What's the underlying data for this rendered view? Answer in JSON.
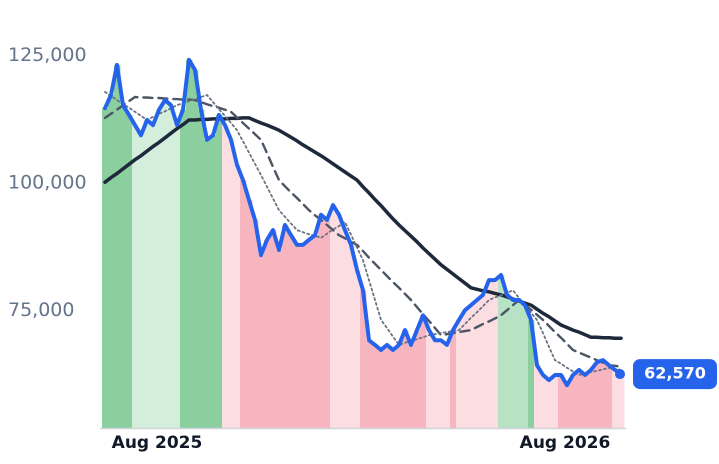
{
  "chart_data": {
    "type": "line",
    "categories": [
      null,
      null,
      null,
      null,
      null,
      null,
      null,
      null,
      null,
      "Aug 2025",
      null,
      null,
      null,
      null,
      null,
      null,
      null,
      null,
      null,
      null,
      null,
      null,
      null,
      null,
      null,
      null,
      null,
      null,
      null,
      null,
      null,
      null,
      null,
      null,
      null,
      null,
      null,
      null,
      null,
      null,
      null,
      null,
      null,
      null,
      null,
      null,
      null,
      null,
      null,
      null,
      null,
      null,
      null,
      null,
      null,
      null,
      null,
      null,
      null,
      null,
      null,
      null,
      null,
      null,
      null,
      null,
      null,
      null,
      null,
      null,
      null,
      null,
      null,
      null,
      null,
      null,
      null,
      "Aug 2026",
      null,
      null,
      null,
      null,
      null,
      null,
      null,
      null,
      null
    ],
    "ylim": [
      52000,
      132000
    ],
    "yticks": [
      {
        "value": 75000,
        "label": "75,000"
      },
      {
        "value": 100000,
        "label": "100,000"
      },
      {
        "value": 125000,
        "label": "125,000"
      }
    ],
    "grid": false,
    "area_colors": [
      "#8ccf9f",
      "#8ccf9f",
      "#8ccf9f",
      "#8ccf9f",
      "#8ccf9f",
      "#d3eedb",
      "#d3eedb",
      "#d3eedb",
      "#d3eedb",
      "#d3eedb",
      "#d3eedb",
      "#d3eedb",
      "#d3eedb",
      "#8ccf9f",
      "#8ccf9f",
      "#8ccf9f",
      "#8ccf9f",
      "#8ccf9f",
      "#8ccf9f",
      "#8ccf9f",
      "#fcdde2",
      "#fcdde2",
      "#fcdde2",
      "#f7b5bf",
      "#f7b5bf",
      "#f7b5bf",
      "#f7b5bf",
      "#f7b5bf",
      "#f7b5bf",
      "#f7b5bf",
      "#f7b5bf",
      "#f7b5bf",
      "#f7b5bf",
      "#f7b5bf",
      "#f7b5bf",
      "#f7b5bf",
      "#f7b5bf",
      "#f7b5bf",
      "#fcdde2",
      "#fcdde2",
      "#fcdde2",
      "#fcdde2",
      "#fcdde2",
      "#f7b5bf",
      "#f7b5bf",
      "#f7b5bf",
      "#f7b5bf",
      "#f7b5bf",
      "#f7b5bf",
      "#f7b5bf",
      "#f7b5bf",
      "#f7b5bf",
      "#f7b5bf",
      "#f7b5bf",
      "#fcdde2",
      "#fcdde2",
      "#fcdde2",
      "#fcdde2",
      "#f7b5bf",
      "#fcdde2",
      "#fcdde2",
      "#fcdde2",
      "#fcdde2",
      "#fcdde2",
      "#fcdde2",
      "#fcdde2",
      "#b8e2c4",
      "#b8e2c4",
      "#b8e2c4",
      "#b8e2c4",
      "#b8e2c4",
      "#8ccf9f",
      "#fcdde2",
      "#fcdde2",
      "#fcdde2",
      "#fcdde2",
      "#f7b5bf",
      "#f7b5bf",
      "#f7b5bf",
      "#f7b5bf",
      "#f7b5bf",
      "#f7b5bf",
      "#f7b5bf",
      "#f7b5bf",
      "#f7b5bf",
      "#fcdde2",
      "#fcdde2"
    ],
    "series": [
      {
        "color": "#2563eb",
        "style": "solid",
        "width": 4,
        "values": [
          114700,
          117300,
          123200,
          115300,
          113400,
          111400,
          109400,
          112400,
          111400,
          114400,
          116300,
          115300,
          111400,
          114400,
          124200,
          122200,
          114400,
          108500,
          109400,
          113400,
          111400,
          108500,
          103600,
          100600,
          96700,
          92800,
          85900,
          88900,
          90800,
          86900,
          91800,
          89800,
          87900,
          87900,
          88900,
          89800,
          93800,
          92800,
          95700,
          93800,
          90800,
          87900,
          83000,
          79000,
          69200,
          68300,
          67300,
          68300,
          67300,
          68300,
          71200,
          68300,
          71200,
          74100,
          71200,
          69200,
          69200,
          68300,
          71200,
          73200,
          75100,
          76100,
          77100,
          78100,
          81000,
          81000,
          82000,
          78100,
          77100,
          77100,
          76100,
          73200,
          64300,
          62400,
          61400,
          62400,
          62400,
          60400,
          62400,
          63400,
          62400,
          63400,
          64900,
          65300,
          64300,
          63400,
          62570
        ],
        "value_labels": [
          null,
          null,
          null,
          null,
          null,
          null,
          null,
          null,
          null,
          null,
          null,
          null,
          null,
          null,
          null,
          null,
          null,
          null,
          null,
          null,
          null,
          null,
          null,
          null,
          null,
          null,
          null,
          null,
          null,
          null,
          null,
          null,
          null,
          null,
          null,
          null,
          null,
          null,
          null,
          null,
          null,
          null,
          null,
          null,
          null,
          null,
          null,
          null,
          null,
          null,
          null,
          null,
          null,
          null,
          null,
          null,
          null,
          null,
          null,
          null,
          null,
          null,
          null,
          null,
          null,
          null,
          null,
          null,
          null,
          null,
          null,
          null,
          null,
          null,
          null,
          null,
          null,
          null,
          null,
          null,
          null,
          null,
          null,
          null,
          null,
          null,
          "62,570"
        ]
      },
      {
        "color": "#6b7280",
        "style": "dotted",
        "width": 1.8,
        "values": [
          117900,
          117100,
          116300,
          115500,
          114800,
          114000,
          113200,
          112400,
          113000,
          113600,
          114100,
          114700,
          115300,
          115700,
          116100,
          116500,
          116900,
          117300,
          115900,
          114500,
          113200,
          111800,
          110400,
          108200,
          106000,
          103800,
          101600,
          99300,
          97000,
          94700,
          93400,
          92100,
          90800,
          90400,
          90000,
          89700,
          89300,
          90100,
          90900,
          91600,
          92400,
          89900,
          87400,
          84900,
          81000,
          77100,
          73200,
          71600,
          69900,
          68300,
          68700,
          69100,
          69400,
          69800,
          70200,
          70400,
          70600,
          70800,
          71000,
          71200,
          72400,
          73600,
          74700,
          75900,
          77100,
          77600,
          78000,
          78500,
          79000,
          77500,
          76100,
          74600,
          73200,
          70600,
          67900,
          65300,
          64600,
          63800,
          63100,
          62400,
          62700,
          63000,
          63200,
          63500,
          63800,
          63600,
          63400
        ]
      },
      {
        "color": "#4b5563",
        "style": "dashed",
        "width": 2.4,
        "values": [
          112800,
          113600,
          114400,
          115300,
          116100,
          116900,
          116800,
          116800,
          116700,
          116700,
          116600,
          116500,
          116500,
          116400,
          116400,
          116300,
          115900,
          115500,
          115100,
          114800,
          114400,
          114000,
          112900,
          111800,
          110700,
          109600,
          108500,
          105900,
          103200,
          100600,
          99400,
          98200,
          97100,
          95900,
          94700,
          93700,
          92800,
          91800,
          90800,
          89800,
          89200,
          88500,
          87900,
          86700,
          85400,
          84200,
          83000,
          81800,
          80600,
          79500,
          78300,
          77100,
          75700,
          74300,
          73000,
          71600,
          70200,
          70400,
          70600,
          70800,
          71000,
          71200,
          71800,
          72400,
          72900,
          73500,
          74100,
          75100,
          76100,
          77100,
          76100,
          75200,
          74200,
          73200,
          72000,
          70800,
          69700,
          68500,
          67300,
          66800,
          66300,
          65800,
          65300,
          64800,
          64300,
          64200,
          64000
        ]
      },
      {
        "color": "#1e293b",
        "style": "solid",
        "width": 3.5,
        "values": [
          100200,
          101100,
          101900,
          102800,
          103700,
          104600,
          105400,
          106300,
          107200,
          108000,
          108900,
          109800,
          110700,
          111500,
          112400,
          112400,
          112500,
          112500,
          112600,
          112600,
          112600,
          112700,
          112700,
          112800,
          112800,
          112300,
          111800,
          111400,
          110900,
          110400,
          109700,
          109000,
          108300,
          107500,
          106800,
          106100,
          105400,
          104600,
          103800,
          103000,
          102200,
          101400,
          100600,
          99300,
          98100,
          96800,
          95600,
          94300,
          93000,
          91800,
          90700,
          89600,
          88500,
          87300,
          86200,
          85100,
          84000,
          83100,
          82200,
          81300,
          80400,
          79500,
          79200,
          78900,
          78700,
          78400,
          78100,
          77700,
          77300,
          76900,
          76500,
          76100,
          75300,
          74500,
          73800,
          73000,
          72200,
          71700,
          71200,
          70800,
          70300,
          69800,
          69800,
          69700,
          69700,
          69600,
          69600
        ]
      }
    ]
  }
}
